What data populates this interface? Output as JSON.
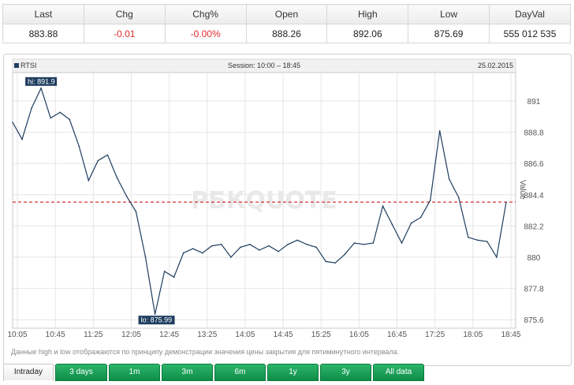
{
  "quote": {
    "headers": [
      "Last",
      "Chg",
      "Chg%",
      "Open",
      "High",
      "Low",
      "DayVal"
    ],
    "values": [
      "883.88",
      "-0.01",
      "-0.00%",
      "888.26",
      "892.06",
      "875.69",
      "555 012 535"
    ]
  },
  "chart_header": {
    "legend": "RTSI",
    "session": "Session: 10:00 – 18:45",
    "date": "25.02.2015"
  },
  "colors": {
    "line": "#1f3d5f",
    "ref_line": "#cc0000",
    "tab_green": "#1a9e55",
    "negative": "#e02b2b"
  },
  "watermark": "РБКQUOTE",
  "note": "Данные high и low отображаются по принципу демонстрации значения цены закрытия для пятиминутного интервала.",
  "tabs": [
    "Intraday",
    "3 days",
    "1m",
    "3m",
    "6m",
    "1y",
    "3y",
    "All data"
  ],
  "active_tab": "Intraday",
  "chart_data": {
    "type": "line",
    "title": "",
    "xlabel": "",
    "ylabel": "Value",
    "ylim": [
      875.0,
      893.0
    ],
    "y_ticks": [
      875.6,
      877.8,
      880,
      882.2,
      884.4,
      886.6,
      888.8,
      891
    ],
    "x_ticks": [
      "10:05",
      "10:45",
      "11:25",
      "12:05",
      "12:45",
      "13:25",
      "14:05",
      "14:45",
      "15:25",
      "16:05",
      "16:45",
      "17:25",
      "18:05",
      "18:45"
    ],
    "x_range": [
      "10:00",
      "18:50"
    ],
    "grid": true,
    "reference_value": 883.88,
    "hi_label": "hi: 891.9",
    "lo_label": "lo: 875.99",
    "series": [
      {
        "x": [
          "10:00",
          "10:10",
          "10:20",
          "10:30",
          "10:40",
          "10:50",
          "11:00",
          "11:10",
          "11:20",
          "11:30",
          "11:40",
          "11:50",
          "12:00",
          "12:10",
          "12:20",
          "12:30",
          "12:40",
          "12:50",
          "13:00",
          "13:10",
          "13:20",
          "13:30",
          "13:40",
          "13:50",
          "14:00",
          "14:10",
          "14:20",
          "14:30",
          "14:40",
          "14:50",
          "15:00",
          "15:10",
          "15:20",
          "15:30",
          "15:40",
          "15:50",
          "16:00",
          "16:10",
          "16:20",
          "16:30",
          "16:40",
          "16:50",
          "17:00",
          "17:10",
          "17:20",
          "17:30",
          "17:40",
          "17:50",
          "18:00",
          "18:10",
          "18:20",
          "18:30",
          "18:40"
        ],
        "y": [
          889.5,
          888.3,
          890.5,
          891.9,
          889.8,
          890.2,
          889.7,
          887.8,
          885.4,
          886.8,
          887.2,
          885.6,
          884.3,
          883.2,
          880.0,
          875.99,
          879.0,
          878.6,
          880.3,
          880.6,
          880.3,
          880.8,
          880.9,
          880.0,
          880.7,
          880.9,
          880.5,
          880.8,
          880.4,
          880.9,
          881.2,
          880.9,
          880.7,
          879.7,
          879.6,
          880.2,
          881.0,
          880.9,
          881.0,
          883.6,
          882.3,
          881.0,
          882.4,
          882.8,
          884.0,
          888.9,
          885.5,
          884.2,
          881.4,
          881.2,
          881.1,
          880.0,
          883.88
        ]
      }
    ]
  }
}
